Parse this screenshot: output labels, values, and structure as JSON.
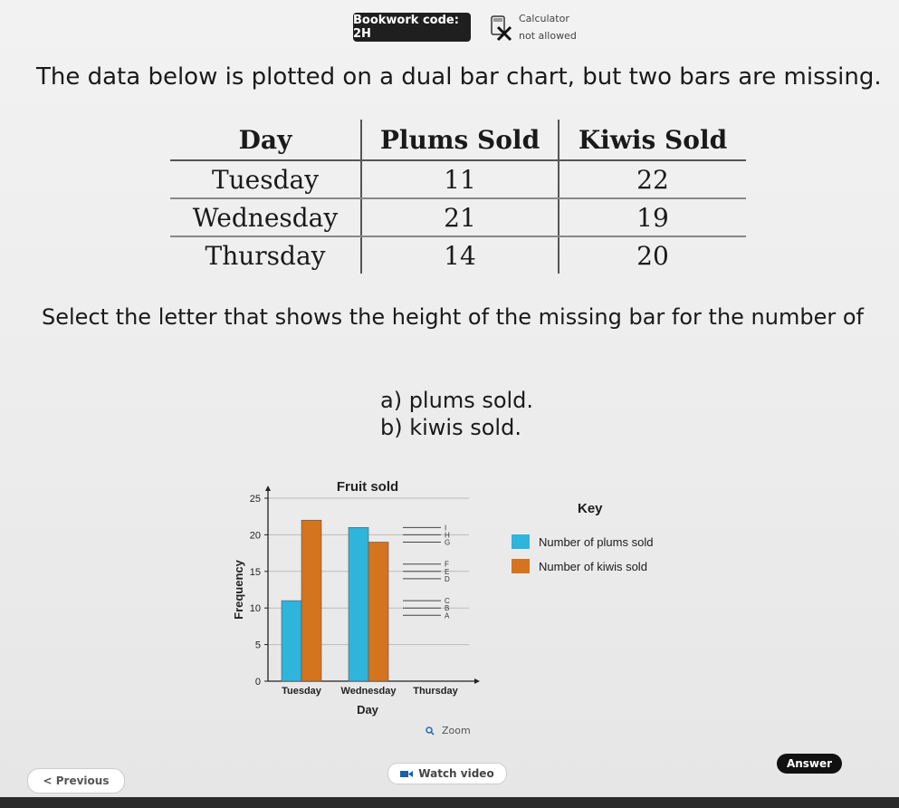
{
  "header": {
    "bookwork_code": "Bookwork code: 2H",
    "calculator_title": "Calculator",
    "calculator_status": "not allowed"
  },
  "intro": "The data below is plotted on a dual bar chart, but two bars are missing.",
  "table": {
    "headers": [
      "Day",
      "Plums Sold",
      "Kiwis Sold"
    ],
    "rows": [
      [
        "Tuesday",
        "11",
        "22"
      ],
      [
        "Wednesday",
        "21",
        "19"
      ],
      [
        "Thursday",
        "14",
        "20"
      ]
    ]
  },
  "question": "Select the letter that shows the height of the missing bar for the number of",
  "items": [
    "a) plums sold.",
    "b) kiwis sold."
  ],
  "chart_data": {
    "type": "bar",
    "title": "Fruit sold",
    "xlabel": "Day",
    "ylabel": "Frequency",
    "ylim": [
      0,
      25
    ],
    "yticks": [
      0,
      5,
      10,
      15,
      20,
      25
    ],
    "categories": [
      "Tuesday",
      "Wednesday",
      "Thursday"
    ],
    "series": [
      {
        "name": "Number of plums sold",
        "values": [
          11,
          21,
          null
        ],
        "color": "#2fb4dc"
      },
      {
        "name": "Number of kiwis sold",
        "values": [
          22,
          19,
          null
        ],
        "color": "#d4741f"
      }
    ],
    "option_marks": [
      {
        "letter": "A",
        "value": 9
      },
      {
        "letter": "B",
        "value": 10
      },
      {
        "letter": "C",
        "value": 11
      },
      {
        "letter": "D",
        "value": 14
      },
      {
        "letter": "E",
        "value": 15
      },
      {
        "letter": "F",
        "value": 16
      },
      {
        "letter": "G",
        "value": 19
      },
      {
        "letter": "H",
        "value": 20
      },
      {
        "letter": "I",
        "value": 21
      }
    ],
    "key_title": "Key",
    "grid": true
  },
  "controls": {
    "zoom_label": "Zoom",
    "previous_label": "< Previous",
    "watch_label": "Watch video",
    "answer_label": "Answer"
  }
}
